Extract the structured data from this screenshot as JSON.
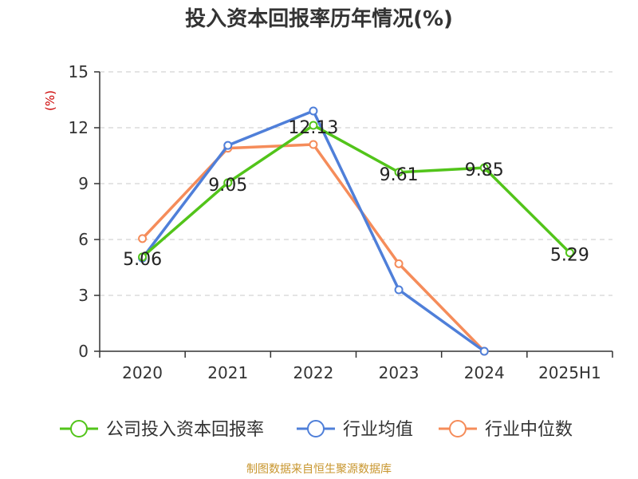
{
  "chart_data": {
    "type": "line",
    "title": "投入资本回报率历年情况(%)",
    "ylabel": "(%)",
    "xlabel": "",
    "categories": [
      "2020",
      "2021",
      "2022",
      "2023",
      "2024",
      "2025H1"
    ],
    "ylim": [
      0,
      15
    ],
    "yticks": [
      0,
      3,
      6,
      9,
      12,
      15
    ],
    "grid": true,
    "legend_position": "bottom",
    "series": [
      {
        "name": "公司投入资本回报率",
        "color": "#52c41a",
        "values": [
          5.06,
          9.05,
          12.13,
          9.61,
          9.85,
          5.29
        ],
        "data_labels": [
          "5.06",
          "9.05",
          "12.13",
          "9.61",
          "9.85",
          "5.29"
        ]
      },
      {
        "name": "行业均值",
        "color": "#4f7fd9",
        "values": [
          5.0,
          11.05,
          12.9,
          3.3,
          0.0,
          null
        ]
      },
      {
        "name": "行业中位数",
        "color": "#f58c5a",
        "values": [
          6.05,
          10.9,
          11.1,
          4.7,
          0.0,
          null
        ]
      }
    ]
  },
  "footer": {
    "source": "制图数据来自恒生聚源数据库"
  }
}
